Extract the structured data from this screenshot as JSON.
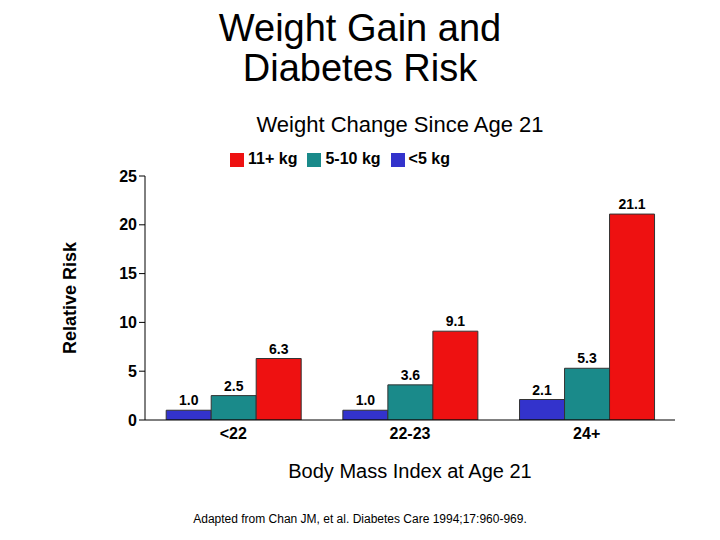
{
  "chart_data": {
    "type": "bar",
    "title": "Weight Gain and Diabetes Risk",
    "subtitle": "Weight Change Since Age 21",
    "x_label": "Body Mass Index at Age 21",
    "y_label": "Relative Risk",
    "annotations": [
      "Adapted from Chan JM, et al. Diabetes Care 1994;17:960-969."
    ],
    "categories": [
      "<22",
      "22-23",
      "24+"
    ],
    "series": [
      {
        "name": "<5 kg",
        "color": "#3333cc",
        "values": [
          1.0,
          1.0,
          2.1
        ],
        "value_labels": [
          "1.0",
          "1.0",
          "2.1"
        ]
      },
      {
        "name": "5-10 kg",
        "color": "#1a8a8a",
        "values": [
          2.5,
          3.6,
          5.3
        ],
        "value_labels": [
          "2.5",
          "3.6",
          "5.3"
        ]
      },
      {
        "name": "11+ kg",
        "color": "#ee1111",
        "values": [
          6.3,
          9.1,
          21.1
        ],
        "value_labels": [
          "6.3",
          "9.1",
          "21.1"
        ]
      }
    ],
    "ylim": [
      0,
      25
    ],
    "yticks": [
      0,
      5,
      10,
      15,
      20,
      25
    ],
    "grid": false,
    "legend": "top",
    "data_labels": true
  }
}
